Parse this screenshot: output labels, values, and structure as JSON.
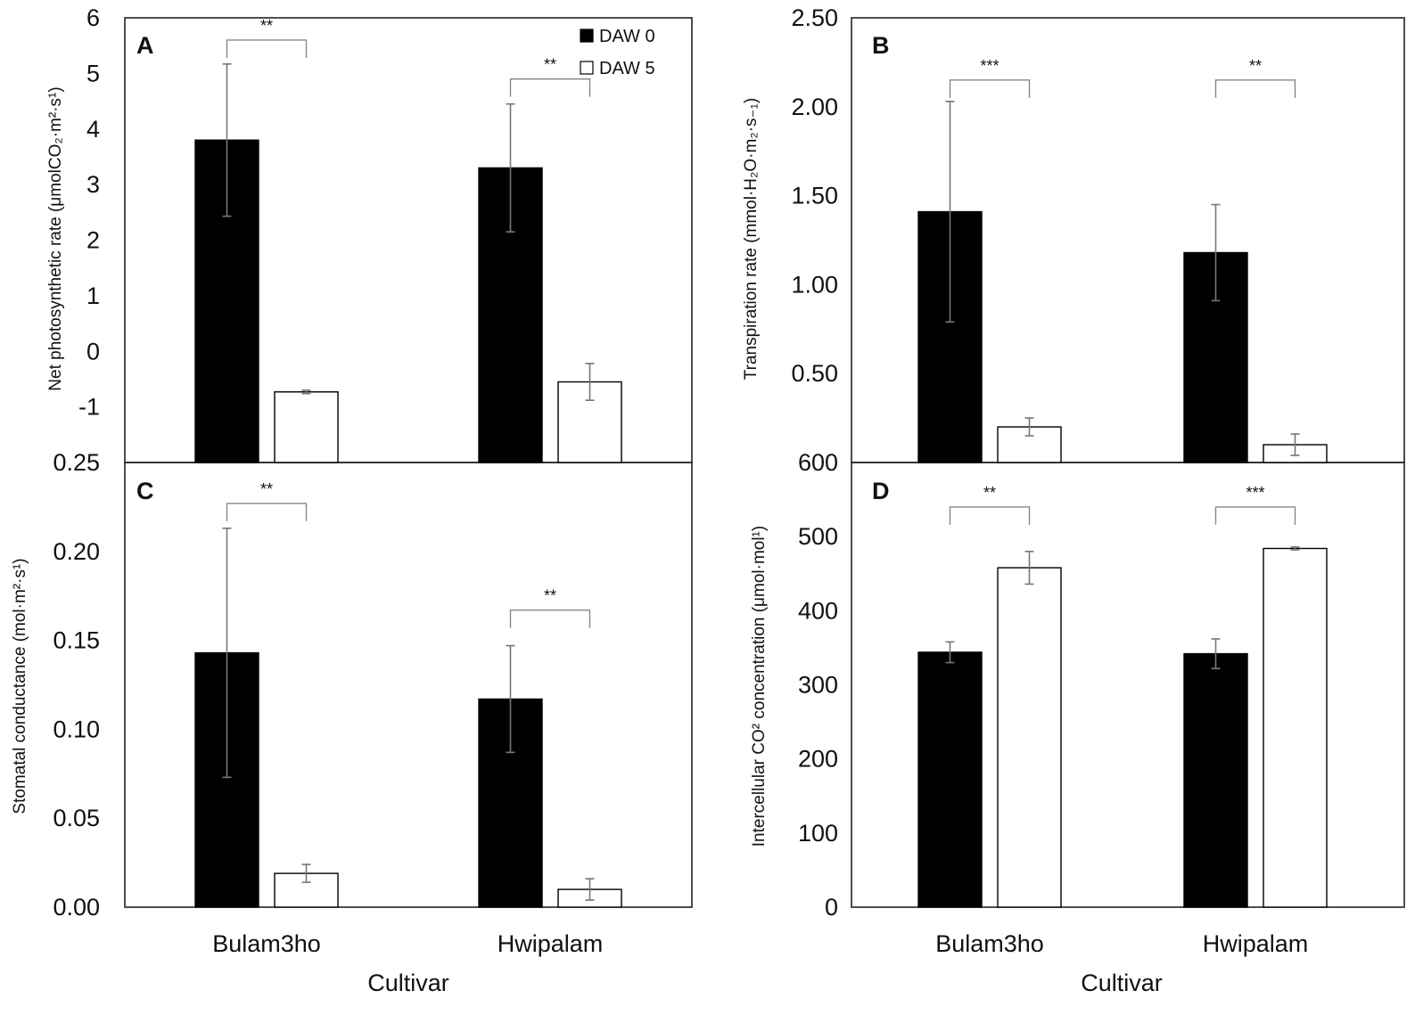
{
  "figure": {
    "x_axis_title": "Cultivar",
    "categories": [
      "Bulam3ho",
      "Hwipalam"
    ],
    "legend": [
      {
        "label": "DAW 0",
        "fill": "#000000"
      },
      {
        "label": "DAW 5",
        "fill": "#ffffff"
      }
    ]
  },
  "chart_data": [
    {
      "panel": "A",
      "type": "bar",
      "ylabel": "Net photosynthetic rate (μmolCO₂·m²·s¹)",
      "ylim": [
        -2,
        6
      ],
      "tick_values": [
        -2,
        -1,
        0,
        1,
        2,
        3,
        4,
        5,
        6
      ],
      "tick_labels": [
        "",
        "-1",
        "0",
        "1",
        "2",
        "3",
        "4",
        "5",
        "6"
      ],
      "categories": [
        "Bulam3ho",
        "Hwipalam"
      ],
      "series": [
        {
          "name": "DAW 0",
          "values": [
            3.8,
            3.3
          ],
          "errors": [
            1.37,
            1.15
          ]
        },
        {
          "name": "DAW 5",
          "values": [
            -0.73,
            -0.55
          ],
          "errors": [
            0.03,
            0.33
          ]
        }
      ],
      "significance": [
        {
          "category": "Bulam3ho",
          "label": "**",
          "y": 5.6
        },
        {
          "category": "Hwipalam",
          "label": "**",
          "y": 4.9
        }
      ]
    },
    {
      "panel": "B",
      "type": "bar",
      "ylabel": "Transpiration rate (mmol·H₂O·m₂·s₋₁)",
      "ylim": [
        0,
        2.5
      ],
      "tick_values": [
        0,
        0.5,
        1.0,
        1.5,
        2.0,
        2.5
      ],
      "tick_labels": [
        "",
        "0.50",
        "1.00",
        "1.50",
        "2.00",
        "2.50"
      ],
      "categories": [
        "Bulam3ho",
        "Hwipalam"
      ],
      "series": [
        {
          "name": "DAW 0",
          "values": [
            1.41,
            1.18
          ],
          "errors": [
            0.62,
            0.27
          ]
        },
        {
          "name": "DAW 5",
          "values": [
            0.2,
            0.1
          ],
          "errors": [
            0.05,
            0.06
          ]
        }
      ],
      "significance": [
        {
          "category": "Bulam3ho",
          "label": "***",
          "y": 2.15
        },
        {
          "category": "Hwipalam",
          "label": "**",
          "y": 2.15
        }
      ]
    },
    {
      "panel": "C",
      "type": "bar",
      "ylabel": "Stomatal conductance (mol·m²·s¹)",
      "ylim": [
        0,
        0.25
      ],
      "tick_values": [
        0,
        0.05,
        0.1,
        0.15,
        0.2,
        0.25
      ],
      "tick_labels": [
        "0.00",
        "0.05",
        "0.10",
        "0.15",
        "0.20",
        "0.25"
      ],
      "categories": [
        "Bulam3ho",
        "Hwipalam"
      ],
      "series": [
        {
          "name": "DAW 0",
          "values": [
            0.143,
            0.117
          ],
          "errors": [
            0.07,
            0.03
          ]
        },
        {
          "name": "DAW 5",
          "values": [
            0.019,
            0.01
          ],
          "errors": [
            0.005,
            0.006
          ]
        }
      ],
      "significance": [
        {
          "category": "Bulam3ho",
          "label": "**",
          "y": 0.227
        },
        {
          "category": "Hwipalam",
          "label": "**",
          "y": 0.167
        }
      ]
    },
    {
      "panel": "D",
      "type": "bar",
      "ylabel": "Intercellular CO² concentration (μmol·mol¹)",
      "ylim": [
        0,
        600
      ],
      "tick_values": [
        0,
        100,
        200,
        300,
        400,
        500,
        600
      ],
      "tick_labels": [
        "0",
        "100",
        "200",
        "300",
        "400",
        "500",
        "600"
      ],
      "categories": [
        "Bulam3ho",
        "Hwipalam"
      ],
      "series": [
        {
          "name": "DAW 0",
          "values": [
            344,
            342
          ],
          "errors": [
            14,
            20
          ]
        },
        {
          "name": "DAW 5",
          "values": [
            458,
            484
          ],
          "errors": [
            22,
            2
          ]
        }
      ],
      "significance": [
        {
          "category": "Bulam3ho",
          "label": "**",
          "y": 540
        },
        {
          "category": "Hwipalam",
          "label": "***",
          "y": 540
        }
      ]
    }
  ]
}
